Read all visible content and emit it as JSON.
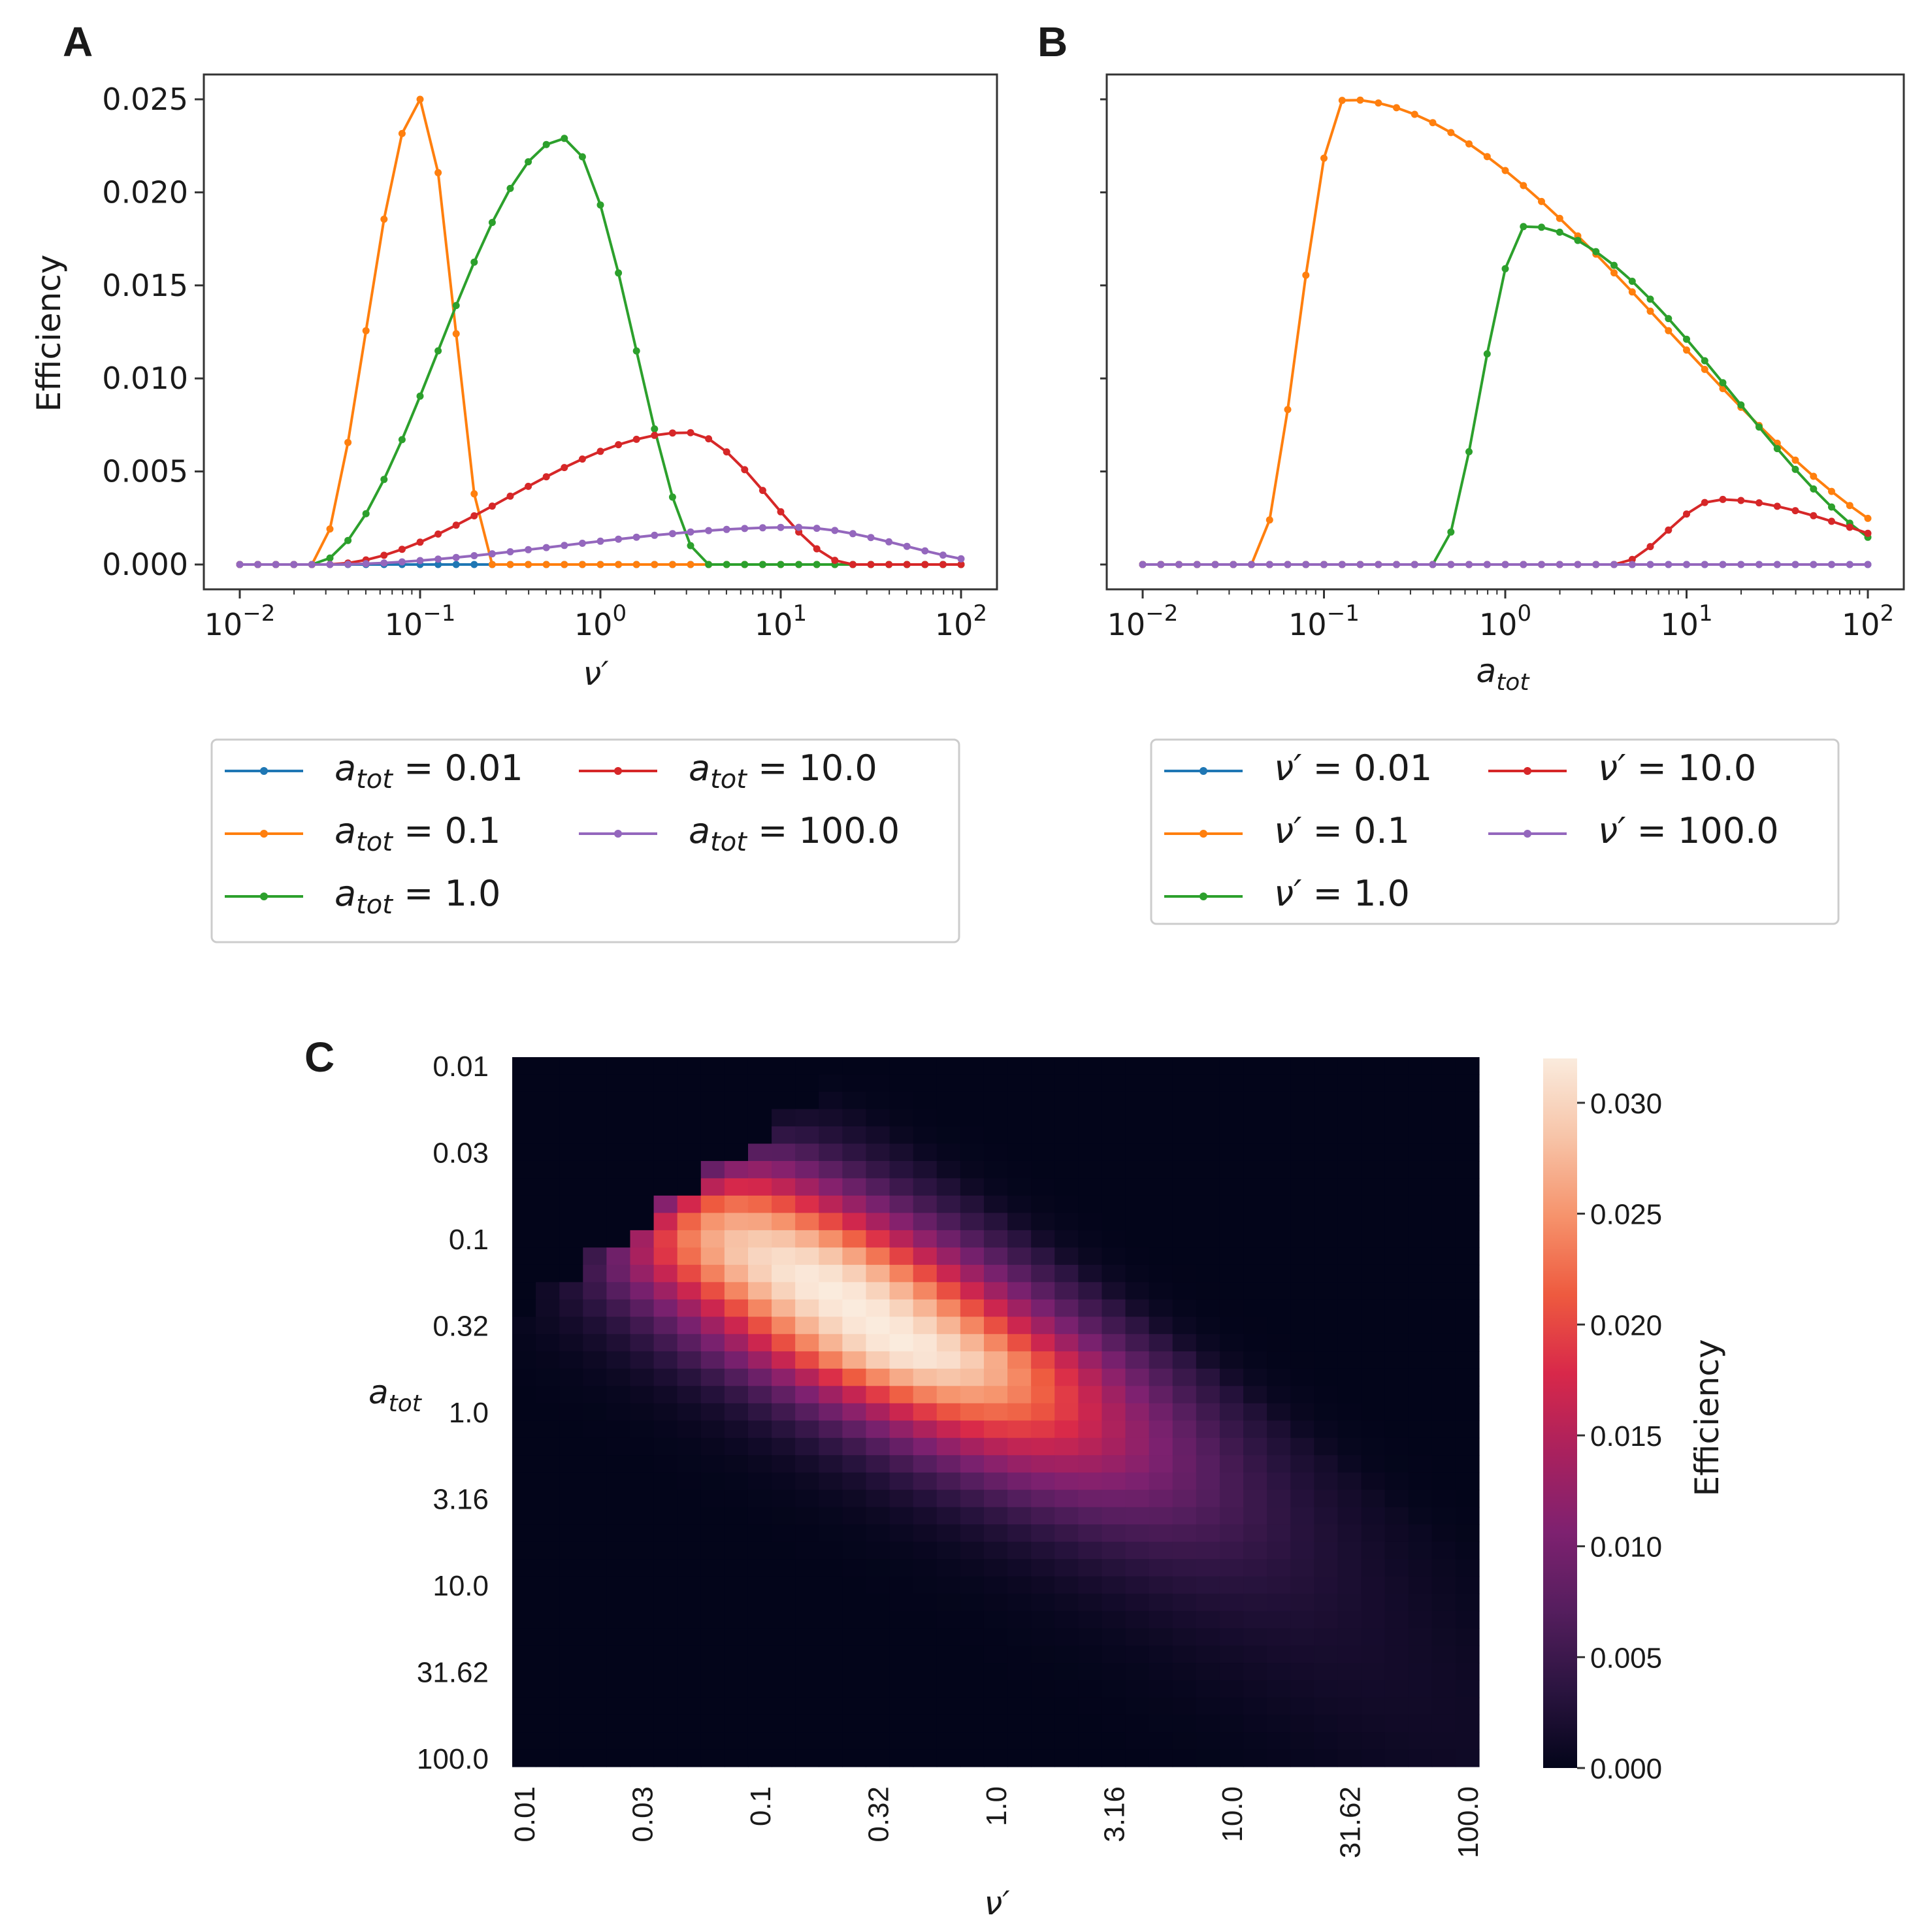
{
  "panels": {
    "A": {
      "letter": "A"
    },
    "B": {
      "letter": "B"
    },
    "C": {
      "letter": "C"
    }
  },
  "chart_data": [
    {
      "id": "A",
      "type": "line",
      "xscale": "log",
      "xlim": [
        0.01,
        100
      ],
      "ylim": [
        0,
        0.025
      ],
      "xlabel": "ν′",
      "ylabel": "Efficiency",
      "xticks": [
        {
          "value": 0.01,
          "base": "10",
          "exp": "−2"
        },
        {
          "value": 0.1,
          "base": "10",
          "exp": "−1"
        },
        {
          "value": 1,
          "base": "10",
          "exp": "0"
        },
        {
          "value": 10,
          "base": "10",
          "exp": "1"
        },
        {
          "value": 100,
          "base": "10",
          "exp": "2"
        }
      ],
      "yticks": [
        {
          "value": 0,
          "label": "0.000"
        },
        {
          "value": 0.005,
          "label": "0.005"
        },
        {
          "value": 0.01,
          "label": "0.010"
        },
        {
          "value": 0.015,
          "label": "0.015"
        },
        {
          "value": 0.02,
          "label": "0.020"
        },
        {
          "value": 0.025,
          "label": "0.025"
        }
      ],
      "legend": {
        "placement": "below",
        "ncol": 2,
        "entries": [
          {
            "sym": "a",
            "sub": "tot",
            "text": " = 0.01"
          },
          {
            "sym": "a",
            "sub": "tot",
            "text": " = 0.1"
          },
          {
            "sym": "a",
            "sub": "tot",
            "text": " = 1.0"
          },
          {
            "sym": "a",
            "sub": "tot",
            "text": " = 10.0"
          },
          {
            "sym": "a",
            "sub": "tot",
            "text": " = 100.0"
          }
        ]
      },
      "series": [
        {
          "name": "a_tot = 0.01",
          "color": "#1f77b4",
          "curve": {
            "kind": "zero"
          }
        },
        {
          "name": "a_tot = 0.1",
          "color": "#ff7f0e",
          "curve": {
            "kind": "tri",
            "peak_x": 0.1,
            "peak_y": 0.025,
            "start_x": 0.025,
            "end_x": 0.25
          }
        },
        {
          "name": "a_tot = 1.0",
          "color": "#2ca02c",
          "curve": {
            "kind": "tri",
            "peak_x": 0.63,
            "peak_y": 0.0229,
            "start_x": 0.025,
            "end_x": 4.0
          }
        },
        {
          "name": "a_tot = 10.0",
          "color": "#d62728",
          "curve": {
            "kind": "tri",
            "peak_x": 3.0,
            "peak_y": 0.0071,
            "start_x": 0.03,
            "end_x": 25
          }
        },
        {
          "name": "a_tot = 100.0",
          "color": "#9467bd",
          "curve": {
            "kind": "tri",
            "peak_x": 12,
            "peak_y": 0.002,
            "start_x": 0.03,
            "end_x": 200
          }
        }
      ]
    },
    {
      "id": "B",
      "type": "line",
      "xscale": "log",
      "xlim": [
        0.01,
        100
      ],
      "ylim": [
        0,
        0.025
      ],
      "xlabel_sym": "a",
      "xlabel_sub": "tot",
      "xticks": [
        {
          "value": 0.01,
          "base": "10",
          "exp": "−2"
        },
        {
          "value": 0.1,
          "base": "10",
          "exp": "−1"
        },
        {
          "value": 1,
          "base": "10",
          "exp": "0"
        },
        {
          "value": 10,
          "base": "10",
          "exp": "1"
        },
        {
          "value": 100,
          "base": "10",
          "exp": "2"
        }
      ],
      "legend": {
        "placement": "below",
        "ncol": 2,
        "entries": [
          {
            "sym": "ν′",
            "sub": "",
            "text": " = 0.01"
          },
          {
            "sym": "ν′",
            "sub": "",
            "text": " = 0.1"
          },
          {
            "sym": "ν′",
            "sub": "",
            "text": " = 1.0"
          },
          {
            "sym": "ν′",
            "sub": "",
            "text": " = 10.0"
          },
          {
            "sym": "ν′",
            "sub": "",
            "text": " = 100.0"
          }
        ]
      },
      "series": [
        {
          "name": "ν′ = 0.01",
          "color": "#1f77b4",
          "curve": {
            "kind": "zero"
          }
        },
        {
          "name": "ν′ = 0.1",
          "color": "#ff7f0e",
          "curve": {
            "kind": "tri",
            "peak_x": 0.13,
            "peak_y": 0.025,
            "start_x": 0.04,
            "end_x": 500
          }
        },
        {
          "name": "ν′ = 1.0",
          "color": "#2ca02c",
          "curve": {
            "kind": "tri",
            "peak_x": 1.3,
            "peak_y": 0.0182,
            "start_x": 0.4,
            "end_x": 250
          }
        },
        {
          "name": "ν′ = 10.0",
          "color": "#d62728",
          "curve": {
            "kind": "tri",
            "peak_x": 15,
            "peak_y": 0.0035,
            "start_x": 4,
            "end_x": 600
          }
        },
        {
          "name": "ν′ = 100.0",
          "color": "#9467bd",
          "curve": {
            "kind": "zero"
          }
        }
      ]
    },
    {
      "id": "C",
      "type": "heatmap",
      "xlabel": "ν′",
      "ylabel_sym": "a",
      "ylabel_sub": "tot",
      "x_tick_labels": [
        "0.01",
        "0.03",
        "0.1",
        "0.32",
        "1.0",
        "3.16",
        "10.0",
        "31.62",
        "100.0"
      ],
      "y_tick_labels": [
        "0.01",
        "0.03",
        "0.1",
        "0.32",
        "1.0",
        "3.16",
        "10.0",
        "31.62",
        "100.0"
      ],
      "grid_size": 41,
      "range": [
        0.01,
        100
      ],
      "colorbar": {
        "label": "Efficiency",
        "min": 0,
        "max": 0.032,
        "ticks": [
          "0.000",
          "0.005",
          "0.010",
          "0.015",
          "0.020",
          "0.025",
          "0.030"
        ],
        "tick_values": [
          0,
          0.005,
          0.01,
          0.015,
          0.02,
          0.025,
          0.03
        ]
      },
      "peak": {
        "x": 0.2,
        "y": 0.2,
        "value": 0.032
      },
      "colormap": [
        "#03051a",
        "#2b1440",
        "#551e5e",
        "#7e2170",
        "#a9215e",
        "#d8284a",
        "#ee5a3f",
        "#f6936c",
        "#f7c4a8",
        "#faebdd"
      ]
    }
  ]
}
